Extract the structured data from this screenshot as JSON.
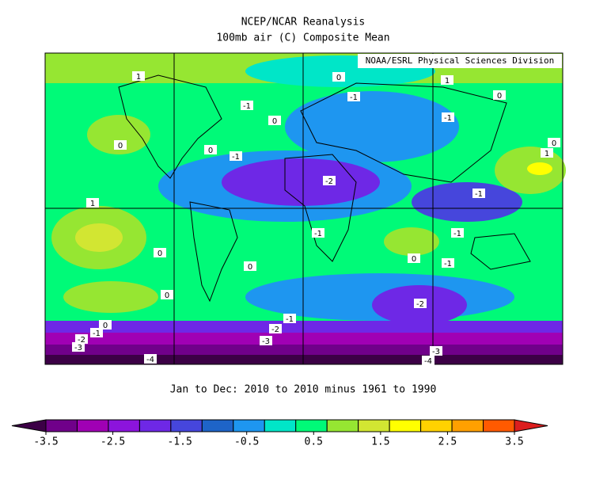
{
  "title": [
    "NCEP/NCAR Reanalysis",
    "100mb air (C) Composite Mean"
  ],
  "credit": "NOAA/ESRL Physical Sciences Division",
  "caption": "Jan to Dec: 2010 to 2010 minus 1961 to 1990",
  "colorbar": {
    "colors": [
      "#3c0046",
      "#70008a",
      "#a000b4",
      "#8c14dc",
      "#6e28e6",
      "#4646dc",
      "#1e64c8",
      "#1e96f0",
      "#00e6c8",
      "#00fa78",
      "#96e632",
      "#d2e632",
      "#ffff00",
      "#ffd200",
      "#ffa000",
      "#ff5a00",
      "#dc1e1e"
    ],
    "ticks": [
      -3.5,
      -2.5,
      -1.5,
      -0.5,
      0.5,
      1.5,
      2.5,
      3.5
    ]
  },
  "contour_labels": [
    1,
    0,
    1,
    -1,
    -1,
    0,
    0,
    -1,
    0,
    0,
    -1,
    0,
    1,
    -2,
    -1,
    1,
    -1,
    -1,
    0,
    0,
    0,
    -1,
    0,
    -2,
    -1,
    0,
    -1,
    -2,
    -2,
    -3,
    -3,
    -3,
    -4,
    -4
  ]
}
